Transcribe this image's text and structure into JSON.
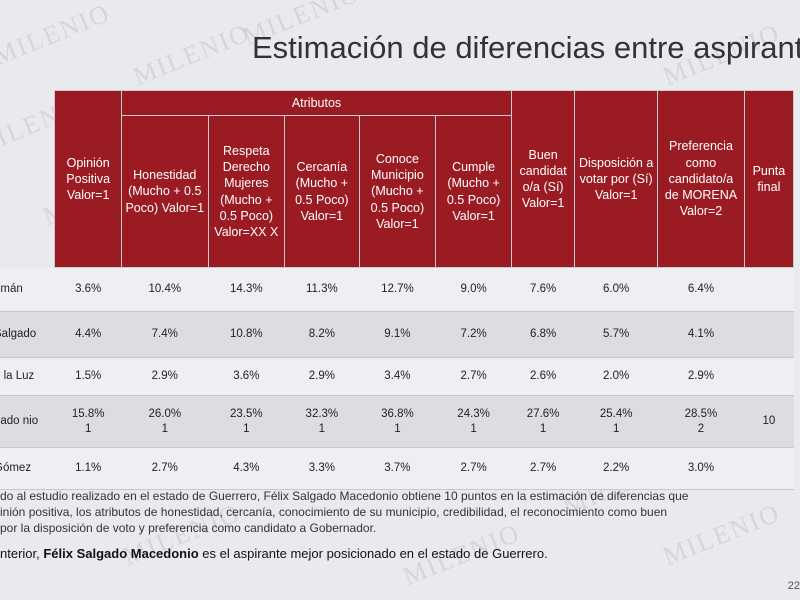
{
  "slide": {
    "title": "Estimación de diferencias entre aspirant",
    "group_header": "Atributos",
    "watermark_text": "MILENIO",
    "page_number": "22",
    "colors": {
      "header_bg": "#9b1b23",
      "header_text": "#ffffff",
      "row_light": "#eeeff3",
      "row_dark": "#dcdde2"
    }
  },
  "table": {
    "columns": [
      "",
      "Opinión Positiva Valor=1",
      "Honestidad (Mucho + 0.5 Poco) Valor=1",
      "Respeta Derecho Mujeres (Mucho + 0.5 Poco) Valor=XX X",
      "Cercanía (Mucho + 0.5 Poco) Valor=1",
      "Conoce Municipio (Mucho + 0.5 Poco) Valor=1",
      "Cumple (Mucho + 0.5 Poco) Valor=1",
      "Buen candidat o/a (Sí) Valor=1",
      "Disposición a votar por (Sí) Valor=1",
      "Preferencia como candidato/a de MORENA Valor=2",
      "Punta final"
    ],
    "rows": [
      {
        "name": "omán",
        "cells": [
          "3.6%",
          "10.4%",
          "14.3%",
          "11.3%",
          "12.7%",
          "9.0%",
          "7.6%",
          "6.0%",
          "6.4%",
          ""
        ]
      },
      {
        "name": "Salgado",
        "cells": [
          "4.4%",
          "7.4%",
          "10.8%",
          "8.2%",
          "9.1%",
          "7.2%",
          "6.8%",
          "5.7%",
          "4.1%",
          ""
        ]
      },
      {
        "name": "e la Luz",
        "cells": [
          "1.5%",
          "2.9%",
          "3.6%",
          "2.9%",
          "3.4%",
          "2.7%",
          "2.6%",
          "2.0%",
          "2.9%",
          ""
        ]
      },
      {
        "name": "gado\nnio",
        "cells": [
          "15.8%\n1",
          "26.0%\n1",
          "23.5%\n1",
          "32.3%\n1",
          "36.8%\n1",
          "24.3%\n1",
          "27.6%\n1",
          "25.4%\n1",
          "28.5%\n2",
          "10"
        ]
      },
      {
        "name": "Gómez",
        "cells": [
          "1.1%",
          "2.7%",
          "4.3%",
          "3.3%",
          "3.7%",
          "2.7%",
          "2.7%",
          "2.2%",
          "3.0%",
          ""
        ]
      }
    ]
  },
  "notes": {
    "line1": "do al estudio realizado en el estado de Guerrero, Félix Salgado Macedonio obtiene 10 puntos en la estimación de diferencias que",
    "line2": "inión positiva, los atributos de honestidad, cercanía, conocimiento de su municipio, credibilidad, el reconocimiento como buen",
    "line3": "por la disposición de voto y preferencia como candidato a Gobernador.",
    "conclusion_prefix": "nterior, ",
    "conclusion_name": "Félix Salgado Macedonio",
    "conclusion_rest": "  es el aspirante mejor posicionado en el estado de Guerrero."
  }
}
